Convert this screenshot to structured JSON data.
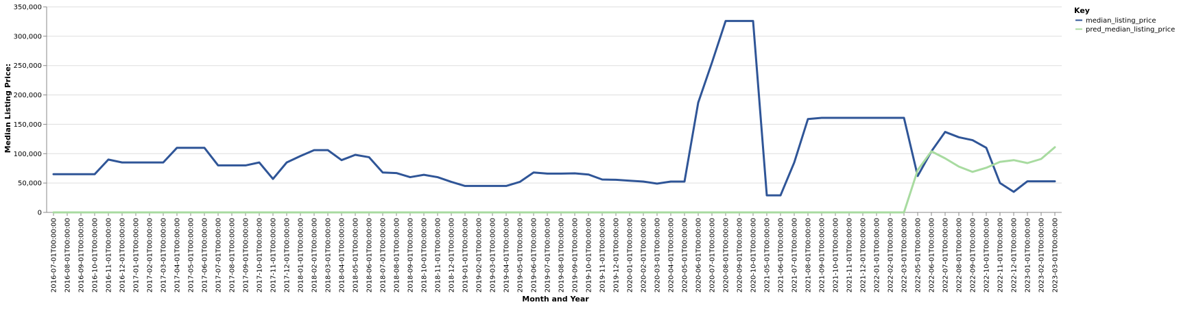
{
  "chart_data": {
    "type": "line",
    "title": "",
    "xlabel": "Month and Year",
    "ylabel": "Median Listing Price:",
    "ylim": [
      0,
      350000
    ],
    "y_ticks": [
      0,
      50000,
      100000,
      150000,
      200000,
      250000,
      300000,
      350000
    ],
    "y_tick_labels": [
      "0",
      "50,000",
      "100,000",
      "150,000",
      "200,000",
      "250,000",
      "300,000",
      "350,000"
    ],
    "grid": true,
    "legend": {
      "title": "Key",
      "placement": "top-right"
    },
    "x": [
      "2016-07-01T00:00:00",
      "2016-08-01T00:00:00",
      "2016-09-01T00:00:00",
      "2016-10-01T00:00:00",
      "2016-11-01T00:00:00",
      "2016-12-01T00:00:00",
      "2017-01-01T00:00:00",
      "2017-02-01T00:00:00",
      "2017-03-01T00:00:00",
      "2017-04-01T00:00:00",
      "2017-05-01T00:00:00",
      "2017-06-01T00:00:00",
      "2017-07-01T00:00:00",
      "2017-08-01T00:00:00",
      "2017-09-01T00:00:00",
      "2017-10-01T00:00:00",
      "2017-11-01T00:00:00",
      "2017-12-01T00:00:00",
      "2018-01-01T00:00:00",
      "2018-02-01T00:00:00",
      "2018-03-01T00:00:00",
      "2018-04-01T00:00:00",
      "2018-05-01T00:00:00",
      "2018-06-01T00:00:00",
      "2018-07-01T00:00:00",
      "2018-08-01T00:00:00",
      "2018-09-01T00:00:00",
      "2018-10-01T00:00:00",
      "2018-11-01T00:00:00",
      "2018-12-01T00:00:00",
      "2019-01-01T00:00:00",
      "2019-02-01T00:00:00",
      "2019-03-01T00:00:00",
      "2019-04-01T00:00:00",
      "2019-05-01T00:00:00",
      "2019-06-01T00:00:00",
      "2019-07-01T00:00:00",
      "2019-08-01T00:00:00",
      "2019-09-01T00:00:00",
      "2019-10-01T00:00:00",
      "2019-11-01T00:00:00",
      "2019-12-01T00:00:00",
      "2020-01-01T00:00:00",
      "2020-02-01T00:00:00",
      "2020-03-01T00:00:00",
      "2020-04-01T00:00:00",
      "2020-05-01T00:00:00",
      "2020-06-01T00:00:00",
      "2020-07-01T00:00:00",
      "2020-08-01T00:00:00",
      "2020-09-01T00:00:00",
      "2020-10-01T00:00:00",
      "2021-05-01T00:00:00",
      "2021-06-01T00:00:00",
      "2021-07-01T00:00:00",
      "2021-08-01T00:00:00",
      "2021-09-01T00:00:00",
      "2021-10-01T00:00:00",
      "2021-11-01T00:00:00",
      "2021-12-01T00:00:00",
      "2022-01-01T00:00:00",
      "2022-02-01T00:00:00",
      "2022-03-01T00:00:00",
      "2022-05-01T00:00:00",
      "2022-06-01T00:00:00",
      "2022-07-01T00:00:00",
      "2022-08-01T00:00:00",
      "2022-09-01T00:00:00",
      "2022-10-01T00:00:00",
      "2022-11-01T00:00:00",
      "2022-12-01T00:00:00",
      "2023-01-01T00:00:00",
      "2023-02-01T00:00:00",
      "2023-03-01T00:00:00"
    ],
    "series": [
      {
        "name": "median_listing_price",
        "color": "#2f5597",
        "values": [
          65000,
          65000,
          65000,
          65000,
          90000,
          85000,
          85000,
          85000,
          85000,
          110000,
          110000,
          110000,
          80000,
          80000,
          80000,
          85000,
          57000,
          85000,
          96000,
          106000,
          106000,
          89000,
          98000,
          94000,
          68000,
          67000,
          60000,
          64000,
          60000,
          52000,
          45000,
          45000,
          45000,
          45000,
          52000,
          68000,
          66000,
          66000,
          66500,
          64500,
          56000,
          55500,
          54000,
          52500,
          49000,
          52500,
          52500,
          187000,
          255000,
          326000,
          326000,
          326000,
          29000,
          29000,
          85000,
          159000,
          161000,
          161000,
          161000,
          161000,
          161000,
          161000,
          161000,
          62000,
          104000,
          137000,
          128000,
          123000,
          110000,
          50000,
          35000,
          53000,
          53000,
          53000
        ]
      },
      {
        "name": "pred_median_listing_price",
        "color": "#a8dba0",
        "values": [
          0,
          0,
          0,
          0,
          0,
          0,
          0,
          0,
          0,
          0,
          0,
          0,
          0,
          0,
          0,
          0,
          0,
          0,
          0,
          0,
          0,
          0,
          0,
          0,
          0,
          0,
          0,
          0,
          0,
          0,
          0,
          0,
          0,
          0,
          0,
          0,
          0,
          0,
          0,
          0,
          0,
          0,
          0,
          0,
          0,
          0,
          0,
          0,
          0,
          0,
          0,
          0,
          0,
          0,
          0,
          0,
          0,
          0,
          0,
          0,
          0,
          0,
          0,
          72000,
          104000,
          92000,
          78000,
          69000,
          76000,
          86000,
          89000,
          84000,
          91000,
          111000
        ]
      }
    ]
  }
}
